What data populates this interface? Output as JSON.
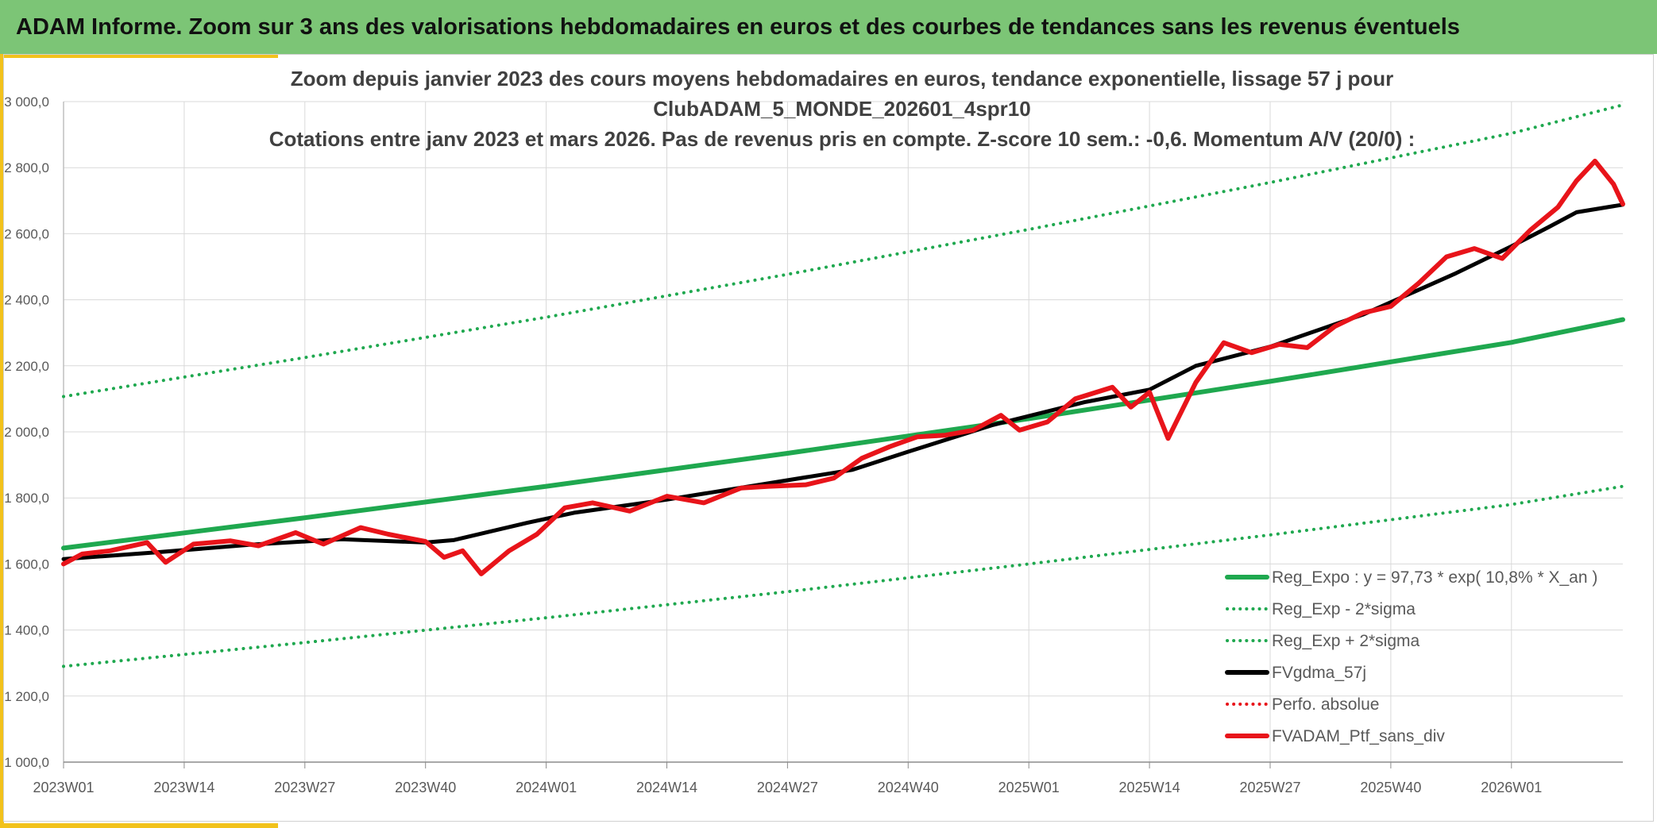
{
  "header": {
    "title": "ADAM Informe. Zoom sur 3 ans des valorisations hebdomadaires en euros et des courbes de tendances sans les revenus éventuels"
  },
  "colors": {
    "banner": "#7cc576",
    "accent": "#f2c21b",
    "trend": "#1fa84f",
    "dotted_green": "#1fa84f",
    "moving_avg": "#000000",
    "portfolio": "#e8141a",
    "perfo": "#e8141a"
  },
  "chart_data": {
    "type": "line",
    "title_lines": [
      "Zoom depuis janvier 2023 des cours moyens hebdomadaires en euros, tendance exponentielle, lissage 57 j pour",
      "ClubADAM_5_MONDE_202601_4spr10",
      "Cotations entre janv 2023 et mars 2026. Pas de revenus pris en compte. Z-score 10 sem.: -0,6. Momentum A/V (20/0) :"
    ],
    "xlabel": "",
    "ylabel": "",
    "x_ticks": [
      "2023W01",
      "2023W14",
      "2023W27",
      "2023W40",
      "2024W01",
      "2024W14",
      "2024W27",
      "2024W40",
      "2025W01",
      "2025W14",
      "2025W27",
      "2025W40",
      "2026W01"
    ],
    "x_tick_index": [
      0,
      13,
      26,
      39,
      52,
      65,
      78,
      91,
      104,
      117,
      130,
      143,
      156
    ],
    "weeks": 169,
    "ylim": [
      1000,
      3000
    ],
    "y_ticks": [
      "1 000,0",
      "1 200,0",
      "1 400,0",
      "1 600,0",
      "1 800,0",
      "2 000,0",
      "2 200,0",
      "2 400,0",
      "2 600,0",
      "2 800,0",
      "3 000,0"
    ],
    "y_tick_values": [
      1000,
      1200,
      1400,
      1600,
      1800,
      2000,
      2200,
      2400,
      2600,
      2800,
      3000
    ],
    "grid": true,
    "legend_position": "bottom-right",
    "series": [
      {
        "name": "Reg_Expo : y = 97,73 * exp( 10,8% *  X_an )",
        "style": "solid",
        "color": "#1fa84f",
        "width": 6,
        "x": [
          0,
          26,
          52,
          78,
          104,
          130,
          156,
          168
        ],
        "y": [
          1648,
          1740,
          1835,
          1935,
          2040,
          2153,
          2271,
          2340
        ]
      },
      {
        "name": "Reg_Exp - 2*sigma",
        "style": "dotted",
        "color": "#1fa84f",
        "width": 4,
        "x": [
          0,
          26,
          52,
          78,
          104,
          130,
          156,
          168
        ],
        "y": [
          1290,
          1362,
          1437,
          1516,
          1600,
          1688,
          1780,
          1835
        ]
      },
      {
        "name": "Reg_Exp + 2*sigma",
        "style": "dotted",
        "color": "#1fa84f",
        "width": 4,
        "x": [
          0,
          26,
          52,
          78,
          104,
          130,
          156,
          168
        ],
        "y": [
          2107,
          2225,
          2347,
          2477,
          2613,
          2755,
          2904,
          2990
        ]
      },
      {
        "name": "FVgdma_57j",
        "style": "solid",
        "color": "#000000",
        "width": 5,
        "x": [
          0,
          10,
          20,
          30,
          39,
          42,
          50,
          55,
          65,
          75,
          85,
          91,
          100,
          110,
          117,
          122,
          130,
          140,
          150,
          156,
          160,
          163,
          168
        ],
        "y": [
          1615,
          1635,
          1658,
          1675,
          1665,
          1672,
          1725,
          1755,
          1795,
          1840,
          1885,
          1940,
          2020,
          2090,
          2128,
          2200,
          2258,
          2355,
          2480,
          2562,
          2620,
          2665,
          2688
        ]
      },
      {
        "name": "Perfo. absolue",
        "style": "dotted",
        "color": "#e8141a",
        "width": 4,
        "x": [],
        "y": []
      },
      {
        "name": "FVADAM_Ptf_sans_div",
        "style": "solid",
        "color": "#e8141a",
        "width": 6,
        "x": [
          0,
          2,
          5,
          9,
          11,
          14,
          18,
          21,
          25,
          28,
          32,
          35,
          39,
          41,
          43,
          45,
          48,
          51,
          54,
          57,
          61,
          65,
          69,
          73,
          76,
          80,
          83,
          86,
          89,
          92,
          95,
          98,
          101,
          103,
          106,
          109,
          113,
          115,
          117,
          119,
          122,
          125,
          128,
          131,
          134,
          137,
          140,
          143,
          146,
          149,
          152,
          155,
          158,
          161,
          163,
          165,
          167,
          168
        ],
        "y": [
          1600,
          1630,
          1640,
          1665,
          1605,
          1660,
          1670,
          1655,
          1695,
          1660,
          1710,
          1690,
          1668,
          1620,
          1640,
          1570,
          1640,
          1690,
          1770,
          1785,
          1760,
          1805,
          1785,
          1830,
          1835,
          1840,
          1860,
          1920,
          1955,
          1985,
          1990,
          2005,
          2050,
          2005,
          2030,
          2100,
          2135,
          2075,
          2120,
          1980,
          2150,
          2270,
          2240,
          2265,
          2255,
          2320,
          2360,
          2380,
          2450,
          2530,
          2555,
          2525,
          2610,
          2680,
          2760,
          2820,
          2750,
          2690
        ]
      }
    ]
  }
}
